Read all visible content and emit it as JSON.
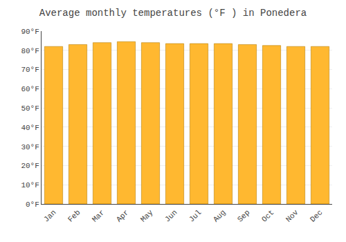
{
  "chart_data": {
    "type": "bar",
    "title": "Average monthly temperatures (°F ) in Ponedera",
    "categories": [
      "Jan",
      "Feb",
      "Mar",
      "Apr",
      "May",
      "Jun",
      "Jul",
      "Aug",
      "Sep",
      "Oct",
      "Nov",
      "Dec"
    ],
    "values": [
      82,
      83,
      84,
      84.5,
      84,
      83.5,
      83.5,
      83.5,
      83,
      82.5,
      82,
      82
    ],
    "color": "#FFB830",
    "ylim": [
      0,
      90
    ],
    "yticks": [
      {
        "value": 0,
        "label": "0°F"
      },
      {
        "value": 10,
        "label": "10°F"
      },
      {
        "value": 20,
        "label": "20°F"
      },
      {
        "value": 30,
        "label": "30°F"
      },
      {
        "value": 40,
        "label": "40°F"
      },
      {
        "value": 50,
        "label": "50°F"
      },
      {
        "value": 60,
        "label": "60°F"
      },
      {
        "value": 70,
        "label": "70°F"
      },
      {
        "value": 80,
        "label": "80°F"
      },
      {
        "value": 90,
        "label": "90°F"
      }
    ],
    "grid": true
  }
}
